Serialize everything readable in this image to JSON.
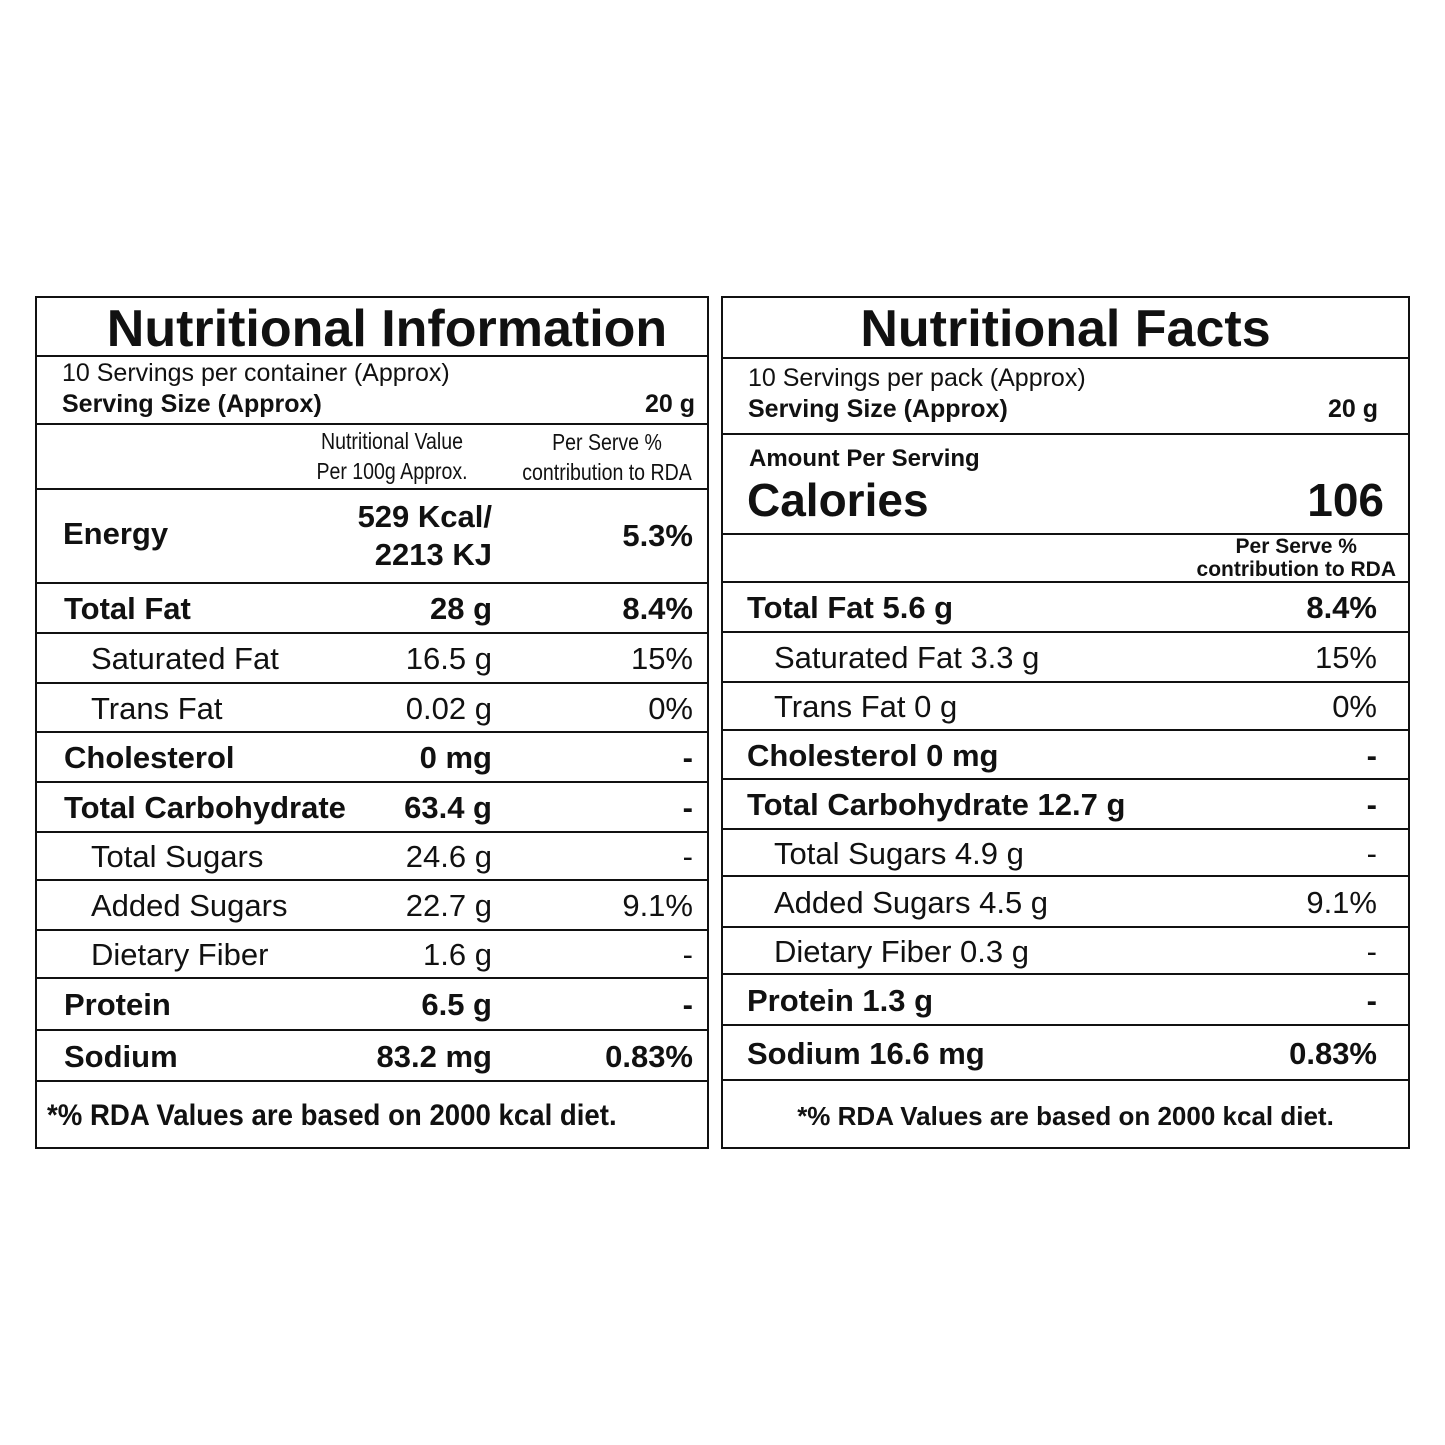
{
  "left": {
    "title": "Nutritional Information",
    "servings": "10 Servings per container (Approx)",
    "serving_size_label": "Serving Size (Approx)",
    "serving_size_value": "20 g",
    "col_value_header_1": "Nutritional Value",
    "col_value_header_2": "Per 100g Approx.",
    "col_rda_header_1": "Per Serve %",
    "col_rda_header_2": "contribution to RDA",
    "energy": {
      "label": "Energy",
      "value_1": "529 Kcal/",
      "value_2": "2213 KJ",
      "rda": "5.3%"
    },
    "rows": [
      {
        "label": "Total Fat",
        "value": "28 g",
        "rda": "8.4%"
      },
      {
        "label": "Saturated Fat",
        "value": "16.5 g",
        "rda": "15%"
      },
      {
        "label": "Trans Fat",
        "value": "0.02 g",
        "rda": "0%"
      },
      {
        "label": "Cholesterol",
        "value": "0 mg",
        "rda": "-"
      },
      {
        "label": "Total Carbohydrate",
        "value": "63.4 g",
        "rda": "-"
      },
      {
        "label": "Total Sugars",
        "value": "24.6 g",
        "rda": "-"
      },
      {
        "label": "Added Sugars",
        "value": "22.7 g",
        "rda": "9.1%"
      },
      {
        "label": "Dietary Fiber",
        "value": "1.6 g",
        "rda": "-"
      },
      {
        "label": "Protein",
        "value": "6.5 g",
        "rda": "-"
      },
      {
        "label": "Sodium",
        "value": "83.2 mg",
        "rda": "0.83%"
      }
    ],
    "footnote": "*% RDA Values are based on 2000 kcal diet."
  },
  "right": {
    "title": "Nutritional Facts",
    "servings": "10 Servings per pack (Approx)",
    "serving_size_label": "Serving Size (Approx)",
    "serving_size_value": "20 g",
    "amount_per_serving": "Amount Per Serving",
    "calories_label": "Calories",
    "calories_value": "106",
    "col_rda_header_1": "Per Serve %",
    "col_rda_header_2": "contribution to RDA",
    "rows": [
      {
        "label": "Total Fat 5.6 g",
        "rda": "8.4%"
      },
      {
        "label": "Saturated Fat 3.3 g",
        "rda": "15%"
      },
      {
        "label": "Trans Fat 0 g",
        "rda": "0%"
      },
      {
        "label": "Cholesterol 0 mg",
        "rda": "-"
      },
      {
        "label": "Total Carbohydrate 12.7 g",
        "rda": "-"
      },
      {
        "label": "Total Sugars 4.9 g",
        "rda": "-"
      },
      {
        "label": "Added Sugars 4.5 g",
        "rda": "9.1%"
      },
      {
        "label": "Dietary Fiber 0.3 g",
        "rda": "-"
      },
      {
        "label": "Protein 1.3 g",
        "rda": "-"
      },
      {
        "label": "Sodium 16.6 mg",
        "rda": "0.83%"
      }
    ],
    "footnote": "*% RDA Values are based on 2000 kcal diet."
  }
}
